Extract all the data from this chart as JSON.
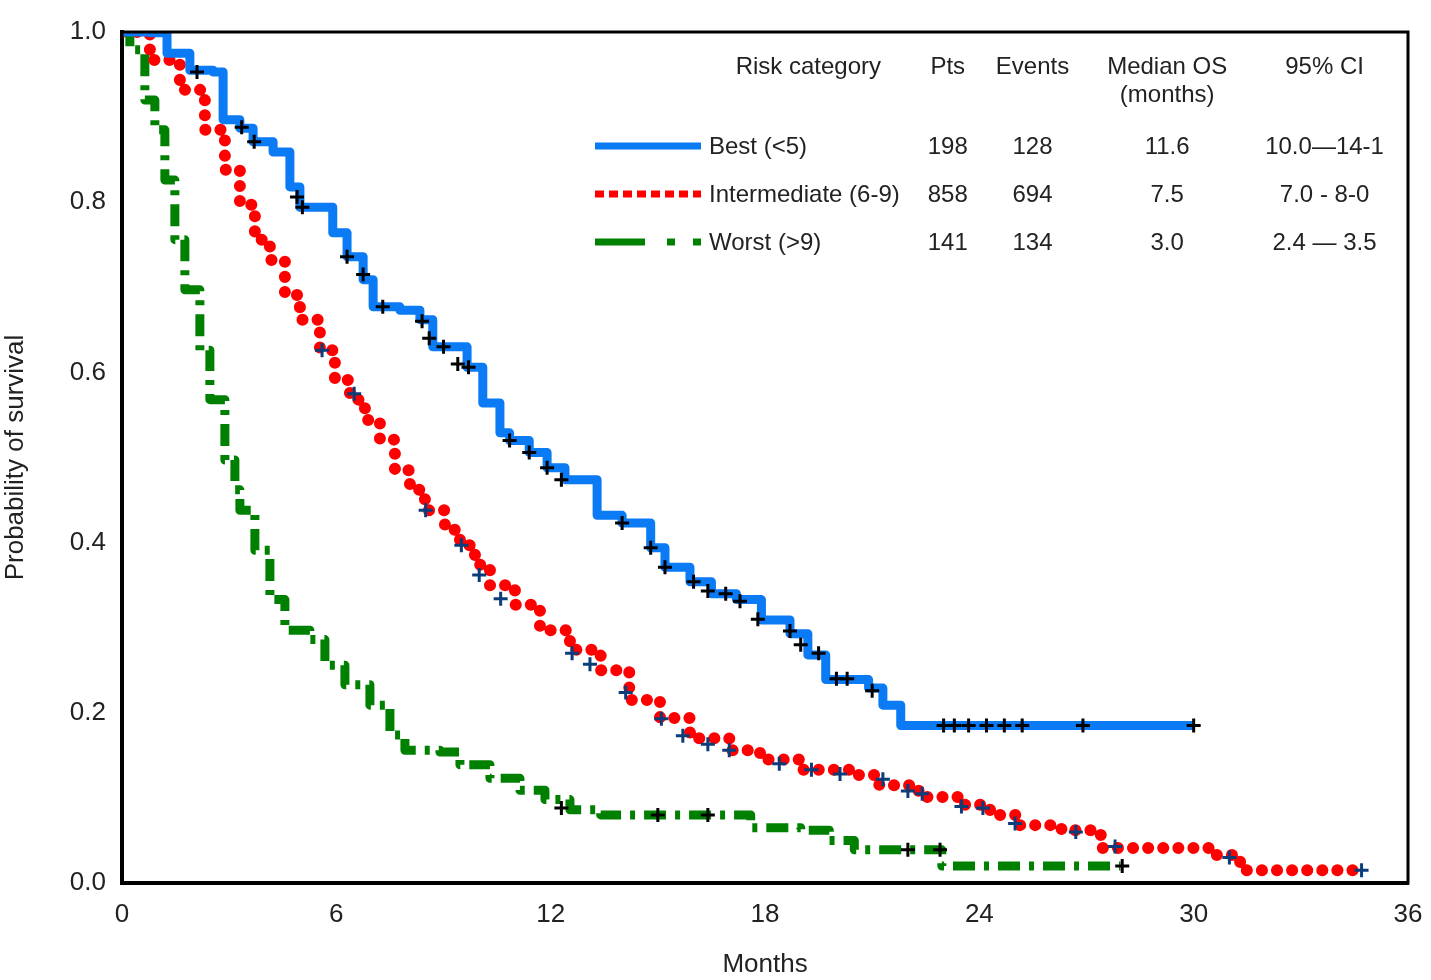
{
  "chart_data": {
    "type": "step",
    "xlabel": "Months",
    "ylabel": "Probability of survival",
    "legend_title": "Risk category",
    "legend": "top right",
    "grid": false,
    "annotations": [
      "Pts",
      "Events",
      "Median OS (months)",
      "95% CI",
      "198",
      "128",
      "11.6",
      "10.0—14-1",
      "858",
      "694",
      "7.5",
      "7.0 - 8-0",
      "141",
      "134",
      "3.0",
      "2.4 — 3.5"
    ],
    "xlim": [
      0,
      36
    ],
    "xticks": [
      0,
      6,
      12,
      18,
      24,
      30,
      36
    ],
    "ylim": [
      0,
      1
    ],
    "yticks": [
      {
        "value": 0,
        "label": "0.0"
      },
      {
        "value": 0.2,
        "label": "0.2"
      },
      {
        "value": 0.4,
        "label": "0.4"
      },
      {
        "value": 0.6,
        "label": "0.6"
      },
      {
        "value": 0.8,
        "label": "0.8"
      },
      {
        "value": 1,
        "label": "1.0"
      }
    ],
    "series": [
      {
        "name": "Best (<5)",
        "color": "#0a7af5",
        "line_style": "solid",
        "x": [
          0,
          0.78,
          1.26,
          1.9,
          2.55,
          2.83,
          3.3,
          3.67,
          4.23,
          4.7,
          4.98,
          5.9,
          6.3,
          6.75,
          7.03,
          7.78,
          8.34,
          8.7,
          9.66,
          10.1,
          10.58,
          10.85,
          11.4,
          11.9,
          12.4,
          13.3,
          14.0,
          14.8,
          15.2,
          15.9,
          16.5,
          17.2,
          17.9,
          18.7,
          19.2,
          19.7,
          20.9,
          21.3,
          21.8,
          30.0
        ],
        "values": [
          1,
          0.999,
          0.975,
          0.955,
          0.953,
          0.897,
          0.887,
          0.871,
          0.859,
          0.818,
          0.794,
          0.764,
          0.736,
          0.709,
          0.677,
          0.673,
          0.662,
          0.63,
          0.606,
          0.564,
          0.529,
          0.52,
          0.506,
          0.488,
          0.474,
          0.432,
          0.423,
          0.394,
          0.371,
          0.354,
          0.34,
          0.333,
          0.309,
          0.293,
          0.268,
          0.239,
          0.229,
          0.209,
          0.185,
          0.185
        ]
      },
      {
        "name": "Intermediate (6-9)",
        "color": "#ff0000",
        "line_style": "dotted",
        "x": [
          0,
          0.78,
          1.62,
          2.32,
          2.88,
          3.3,
          3.72,
          4.14,
          4.56,
          4.98,
          5.54,
          5.96,
          6.38,
          6.8,
          7.22,
          7.64,
          8.06,
          8.48,
          9.04,
          9.46,
          9.88,
          10.3,
          11.0,
          11.7,
          12.54,
          13.4,
          14.2,
          15.06,
          15.9,
          17.0,
          17.86,
          18.98,
          20.4,
          21.2,
          22.3,
          23.5,
          24.3,
          25.1,
          26.3,
          27.4,
          30.6,
          31.3,
          34.8
        ],
        "values": [
          1,
          0.967,
          0.932,
          0.885,
          0.838,
          0.797,
          0.756,
          0.732,
          0.691,
          0.662,
          0.626,
          0.591,
          0.568,
          0.544,
          0.521,
          0.485,
          0.462,
          0.438,
          0.415,
          0.397,
          0.374,
          0.35,
          0.327,
          0.297,
          0.274,
          0.25,
          0.215,
          0.194,
          0.17,
          0.156,
          0.145,
          0.133,
          0.127,
          0.115,
          0.101,
          0.092,
          0.08,
          0.068,
          0.062,
          0.041,
          0.033,
          0.015,
          0.015
        ]
      },
      {
        "name": "Worst (>9)",
        "color": "#008000",
        "line_style": "dashed",
        "x": [
          0,
          0.22,
          0.64,
          0.92,
          1.2,
          1.48,
          1.76,
          2.18,
          2.46,
          2.88,
          3.16,
          3.3,
          3.72,
          4.14,
          4.56,
          5.26,
          5.68,
          6.24,
          6.94,
          7.5,
          7.92,
          8.9,
          9.46,
          10.3,
          11.14,
          11.84,
          12.54,
          13.4,
          17.6,
          19.0,
          19.8,
          20.5,
          22.95,
          27.95
        ],
        "values": [
          1,
          0.979,
          0.92,
          0.885,
          0.826,
          0.756,
          0.697,
          0.626,
          0.568,
          0.497,
          0.462,
          0.438,
          0.391,
          0.333,
          0.297,
          0.286,
          0.256,
          0.233,
          0.209,
          0.174,
          0.156,
          0.154,
          0.139,
          0.123,
          0.109,
          0.098,
          0.086,
          0.08,
          0.065,
          0.062,
          0.05,
          0.039,
          0.02,
          0.02
        ]
      },
      {
        "type": "scatter",
        "marker": "cross",
        "color": "#000000",
        "x": [
          2.1,
          3.35,
          3.7,
          4.9,
          5.05,
          6.3,
          6.75,
          7.3,
          8.4,
          8.6,
          9.0,
          9.4,
          9.7,
          10.85,
          11.4,
          11.9,
          12.3,
          14.0,
          14.8,
          15.2,
          16.0,
          16.4,
          16.9,
          17.3,
          17.8,
          18.7,
          19.0,
          19.5,
          20.0,
          20.3,
          21.0,
          23.0,
          23.3,
          23.7,
          24.2,
          24.7,
          25.2,
          26.9,
          30.0
        ],
        "values": [
          0.953,
          0.888,
          0.871,
          0.806,
          0.794,
          0.736,
          0.715,
          0.677,
          0.66,
          0.64,
          0.63,
          0.61,
          0.606,
          0.52,
          0.506,
          0.488,
          0.474,
          0.423,
          0.394,
          0.371,
          0.354,
          0.343,
          0.34,
          0.331,
          0.31,
          0.296,
          0.28,
          0.27,
          0.24,
          0.24,
          0.226,
          0.185,
          0.185,
          0.185,
          0.185,
          0.185,
          0.185,
          0.185,
          0.185
        ]
      },
      {
        "type": "scatter",
        "marker": "cross",
        "color": "#0b3d7a",
        "x": [
          5.6,
          6.5,
          8.5,
          9.5,
          10.0,
          10.6,
          12.6,
          13.1,
          14.1,
          15.1,
          15.7,
          16.4,
          17.0,
          18.4,
          19.3,
          20.1,
          21.3,
          22.0,
          22.4,
          23.5,
          24.1,
          25.0,
          26.7,
          27.8,
          31.0,
          34.7
        ],
        "values": [
          0.626,
          0.575,
          0.438,
          0.397,
          0.362,
          0.334,
          0.27,
          0.257,
          0.224,
          0.193,
          0.173,
          0.163,
          0.156,
          0.14,
          0.133,
          0.128,
          0.122,
          0.108,
          0.105,
          0.09,
          0.088,
          0.07,
          0.06,
          0.043,
          0.03,
          0.015
        ]
      },
      {
        "type": "scatter",
        "marker": "cross",
        "color": "#000000",
        "x": [
          12.3,
          15.0,
          16.4,
          22.0,
          22.9,
          28.0
        ],
        "values": [
          0.088,
          0.08,
          0.08,
          0.039,
          0.039,
          0.02
        ]
      }
    ]
  }
}
